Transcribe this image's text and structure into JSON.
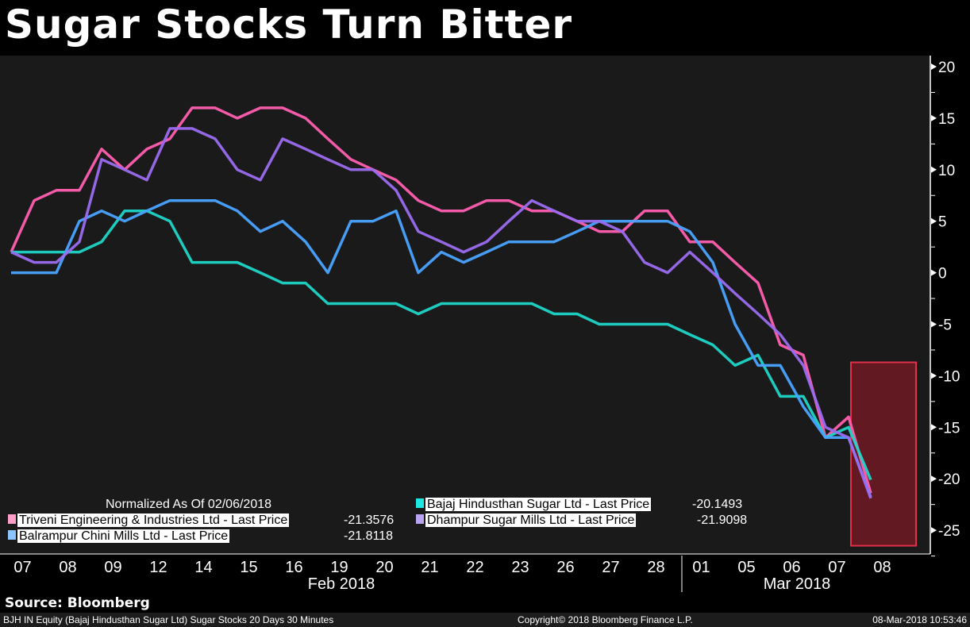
{
  "chart_data": {
    "type": "line",
    "title": "Sugar Stocks Turn Bitter",
    "subtitle": "Normalized As Of 02/06/2018",
    "x": [
      "02-07 AM",
      "02-07 PM",
      "02-08 AM",
      "02-08 PM",
      "02-09 AM",
      "02-09 PM",
      "02-12 AM",
      "02-12 PM",
      "02-14 AM",
      "02-14 PM",
      "02-15 AM",
      "02-15 PM",
      "02-16 AM",
      "02-16 PM",
      "02-19 AM",
      "02-19 PM",
      "02-20 AM",
      "02-20 PM",
      "02-21 AM",
      "02-21 PM",
      "02-22 AM",
      "02-22 PM",
      "02-23 AM",
      "02-23 PM",
      "02-26 AM",
      "02-26 PM",
      "02-27 AM",
      "02-27 PM",
      "02-28 AM",
      "02-28 PM",
      "03-01 AM",
      "03-01 PM",
      "03-05 AM",
      "03-05 PM",
      "03-06 AM",
      "03-06 PM",
      "03-07 AM",
      "03-07 PM",
      "03-08 AM"
    ],
    "x_tick_labels": [
      "07",
      "08",
      "09",
      "12",
      "14",
      "15",
      "16",
      "19",
      "20",
      "21",
      "22",
      "23",
      "26",
      "27",
      "28",
      "01",
      "05",
      "06",
      "07",
      "08"
    ],
    "x_group_labels": [
      "Feb 2018",
      "Mar 2018"
    ],
    "y_ticks": [
      20,
      15,
      10,
      5,
      0,
      -5,
      -10,
      -15,
      -20,
      -25
    ],
    "ylim": [
      -26.5,
      21
    ],
    "y_axis_side": "right",
    "grid": false,
    "legend_position": "bottom-left",
    "highlight": {
      "y_range": [
        -26.5,
        -8.7
      ],
      "x_range": [
        "03-07 PM",
        "03-08"
      ],
      "color": "#e0304a"
    },
    "series": [
      {
        "name": "Triveni Engineering & Industries Ltd - Last Price",
        "last": "-21.3576",
        "color": "#ff5fb0",
        "values": [
          2,
          7,
          8,
          8,
          12,
          10,
          12,
          13,
          16,
          16,
          15,
          16,
          16,
          15,
          13,
          11,
          10,
          9,
          7,
          6,
          6,
          7,
          7,
          6,
          6,
          5,
          4,
          4,
          6,
          6,
          3,
          3,
          1,
          -1,
          -7,
          -8,
          -16,
          -14,
          -21.4
        ]
      },
      {
        "name": "Bajaj Hindusthan Sugar Ltd - Last Price",
        "last": "-20.1493",
        "color": "#1ed6c8",
        "values": [
          2,
          2,
          2,
          2,
          3,
          6,
          6,
          5,
          1,
          1,
          1,
          0,
          -1,
          -1,
          -3,
          -3,
          -3,
          -3,
          -4,
          -3,
          -3,
          -3,
          -3,
          -3,
          -4,
          -4,
          -5,
          -5,
          -5,
          -5,
          -6,
          -7,
          -9,
          -8,
          -12,
          -12,
          -16,
          -15,
          -20.1
        ]
      },
      {
        "name": "Balrampur Chini Mills Ltd - Last Price",
        "last": "-21.8118",
        "color": "#4aa3ff",
        "values": [
          0,
          0,
          0,
          5,
          6,
          5,
          6,
          7,
          7,
          7,
          6,
          4,
          5,
          3,
          0,
          5,
          5,
          6,
          0,
          2,
          1,
          2,
          3,
          3,
          3,
          4,
          5,
          5,
          5,
          5,
          4,
          1,
          -5,
          -9,
          -9,
          -13,
          -16,
          -16,
          -21.8
        ]
      },
      {
        "name": "Dhampur Sugar Mills Ltd - Last Price",
        "last": "-21.9098",
        "color": "#9b6cf0",
        "values": [
          2,
          1,
          1,
          3,
          11,
          10,
          9,
          14,
          14,
          13,
          10,
          9,
          13,
          12,
          11,
          10,
          10,
          8,
          4,
          3,
          2,
          3,
          5,
          7,
          6,
          5,
          5,
          4,
          1,
          0,
          2,
          0,
          -2,
          -4,
          -6,
          -9,
          -15,
          -16,
          -21.9
        ]
      }
    ]
  },
  "footer": {
    "source": "Source: Bloomberg",
    "desc": "BJH IN Equity (Bajaj Hindusthan Sugar Ltd) Sugar Stocks 20 Days 30 Minutes",
    "copyright": "Copyright© 2018 Bloomberg Finance L.P.",
    "timestamp": "08-Mar-2018 10:53:46"
  }
}
